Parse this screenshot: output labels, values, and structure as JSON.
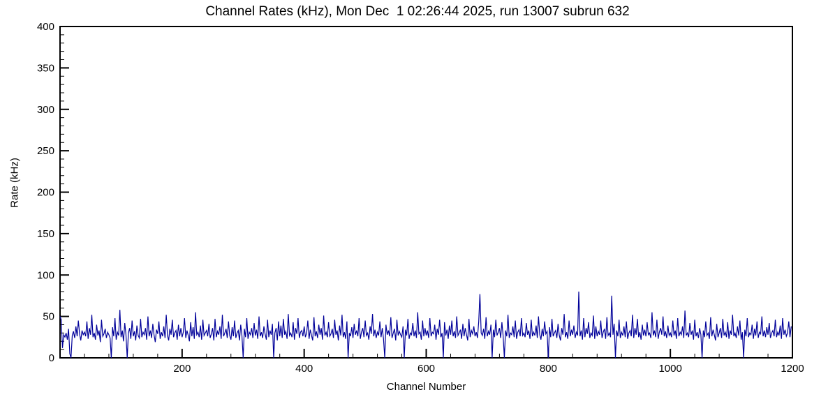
{
  "title": "Channel Rates (kHz), Mon Dec  1 02:26:44 2025, run 13007 subrun 632",
  "xlabel": "Channel Number",
  "ylabel": "Rate (kHz)",
  "chart_data": {
    "type": "line",
    "title": "Channel Rates (kHz), Mon Dec  1 02:26:44 2025, run 13007 subrun 632",
    "xlabel": "Channel Number",
    "ylabel": "Rate (kHz)",
    "line_color": "#000099",
    "background_color": "#ffffff",
    "grid": false,
    "legend": false,
    "xlim": [
      0,
      1200
    ],
    "ylim": [
      0,
      400
    ],
    "x_ticks_major": [
      200,
      400,
      600,
      800,
      1000,
      1200
    ],
    "x_minor_step": 40,
    "y_ticks_major": [
      0,
      50,
      100,
      150,
      200,
      250,
      300,
      350,
      400
    ],
    "y_minor_step": 10,
    "x_start": 0,
    "x_step": 2,
    "values": [
      50,
      46,
      12,
      28,
      25,
      30,
      22,
      35,
      5,
      0,
      27,
      32,
      24,
      38,
      26,
      45,
      29,
      21,
      33,
      28,
      31,
      26,
      44,
      23,
      36,
      28,
      52,
      25,
      30,
      22,
      40,
      27,
      33,
      19,
      46,
      26,
      29,
      35,
      24,
      31,
      28,
      24,
      0,
      37,
      26,
      48,
      22,
      31,
      27,
      58,
      25,
      33,
      20,
      42,
      28,
      0,
      30,
      36,
      23,
      45,
      26,
      32,
      21,
      39,
      27,
      24,
      47,
      25,
      31,
      28,
      36,
      22,
      50,
      26,
      33,
      24,
      41,
      28,
      19,
      34,
      29,
      44,
      23,
      31,
      26,
      38,
      24,
      52,
      27,
      21,
      35,
      28,
      46,
      25,
      30,
      33,
      22,
      40,
      26,
      36,
      25,
      31,
      48,
      24,
      33,
      27,
      20,
      43,
      26,
      37,
      23,
      55,
      28,
      31,
      25,
      39,
      22,
      46,
      27,
      30,
      33,
      26,
      41,
      24,
      29,
      36,
      21,
      47,
      25,
      32,
      28,
      38,
      23,
      52,
      26,
      30,
      35,
      24,
      44,
      27,
      22,
      37,
      26,
      45,
      24,
      30,
      33,
      21,
      40,
      27,
      0,
      35,
      25,
      48,
      23,
      31,
      28,
      36,
      24,
      42,
      27,
      34,
      23,
      50,
      26,
      31,
      24,
      38,
      29,
      22,
      46,
      25,
      33,
      28,
      41,
      0,
      30,
      36,
      21,
      44,
      26,
      39,
      24,
      47,
      28,
      32,
      23,
      53,
      27,
      30,
      25,
      43,
      22,
      36,
      29,
      48,
      24,
      31,
      33,
      26,
      38,
      25,
      30,
      45,
      23,
      34,
      27,
      21,
      49,
      26,
      32,
      24,
      40,
      28,
      36,
      22,
      51,
      27,
      31,
      25,
      43,
      26,
      29,
      35,
      24,
      46,
      28,
      33,
      21,
      39,
      27,
      52,
      25,
      31,
      23,
      44,
      0,
      30,
      26,
      37,
      24,
      41,
      28,
      33,
      26,
      48,
      23,
      31,
      36,
      25,
      45,
      27,
      30,
      22,
      38,
      29,
      53,
      26,
      34,
      24,
      31,
      27,
      44,
      25,
      36,
      23,
      0,
      40,
      28,
      33,
      26,
      49,
      24,
      30,
      35,
      21,
      46,
      27,
      32,
      28,
      25,
      38,
      0,
      34,
      27,
      47,
      23,
      30,
      28,
      42,
      26,
      33,
      24,
      55,
      29,
      31,
      22,
      45,
      26,
      36,
      27,
      33,
      24,
      48,
      26,
      31,
      29,
      40,
      22,
      35,
      28,
      46,
      25,
      30,
      0,
      43,
      27,
      34,
      23,
      39,
      28,
      45,
      26,
      32,
      24,
      50,
      27,
      30,
      34,
      23,
      41,
      26,
      36,
      28,
      21,
      47,
      25,
      33,
      29,
      38,
      26,
      31,
      24,
      44,
      77,
      30,
      27,
      35,
      23,
      49,
      26,
      32,
      28,
      40,
      0,
      34,
      25,
      46,
      27,
      31,
      36,
      24,
      43,
      27,
      0,
      33,
      26,
      52,
      24,
      30,
      28,
      38,
      25,
      45,
      23,
      31,
      34,
      26,
      48,
      27,
      30,
      25,
      42,
      28,
      33,
      23,
      46,
      26,
      31,
      27,
      39,
      24,
      50,
      28,
      22,
      35,
      26,
      44,
      29,
      32,
      0,
      37,
      25,
      47,
      26,
      30,
      33,
      24,
      41,
      27,
      21,
      36,
      28,
      53,
      25,
      31,
      23,
      45,
      26,
      34,
      28,
      39,
      24,
      31,
      27,
      80,
      26,
      33,
      22,
      48,
      25,
      36,
      29,
      43,
      24,
      30,
      27,
      51,
      23,
      38,
      26,
      32,
      28,
      45,
      24,
      31,
      35,
      23,
      49,
      27,
      30,
      25,
      75,
      28,
      41,
      0,
      33,
      26,
      46,
      24,
      31,
      27,
      38,
      25,
      44,
      23,
      30,
      33,
      26,
      52,
      24,
      36,
      28,
      47,
      25,
      31,
      22,
      40,
      27,
      34,
      26,
      43,
      28,
      30,
      24,
      55,
      27,
      33,
      25,
      46,
      23,
      31,
      36,
      28,
      50,
      26,
      32,
      24,
      39,
      27,
      30,
      25,
      45,
      27,
      33,
      23,
      48,
      26,
      31,
      28,
      38,
      24,
      57,
      27,
      30,
      25,
      42,
      28,
      33,
      22,
      46,
      26,
      31,
      24,
      36,
      28,
      0,
      33,
      25,
      44,
      27,
      30,
      23,
      49,
      26,
      34,
      28,
      21,
      41,
      25,
      30,
      36,
      24,
      47,
      27,
      31,
      25,
      43,
      23,
      33,
      28,
      52,
      26,
      30,
      24,
      38,
      27,
      45,
      22,
      31,
      0,
      34,
      26,
      48,
      25,
      30,
      28,
      40,
      23,
      35,
      27,
      44,
      24,
      31,
      29,
      50,
      26,
      33,
      25,
      37,
      28,
      42,
      24,
      30,
      33,
      26,
      46,
      25,
      31,
      27,
      39,
      23,
      48,
      28,
      34,
      26,
      30,
      44,
      25,
      38
    ]
  }
}
